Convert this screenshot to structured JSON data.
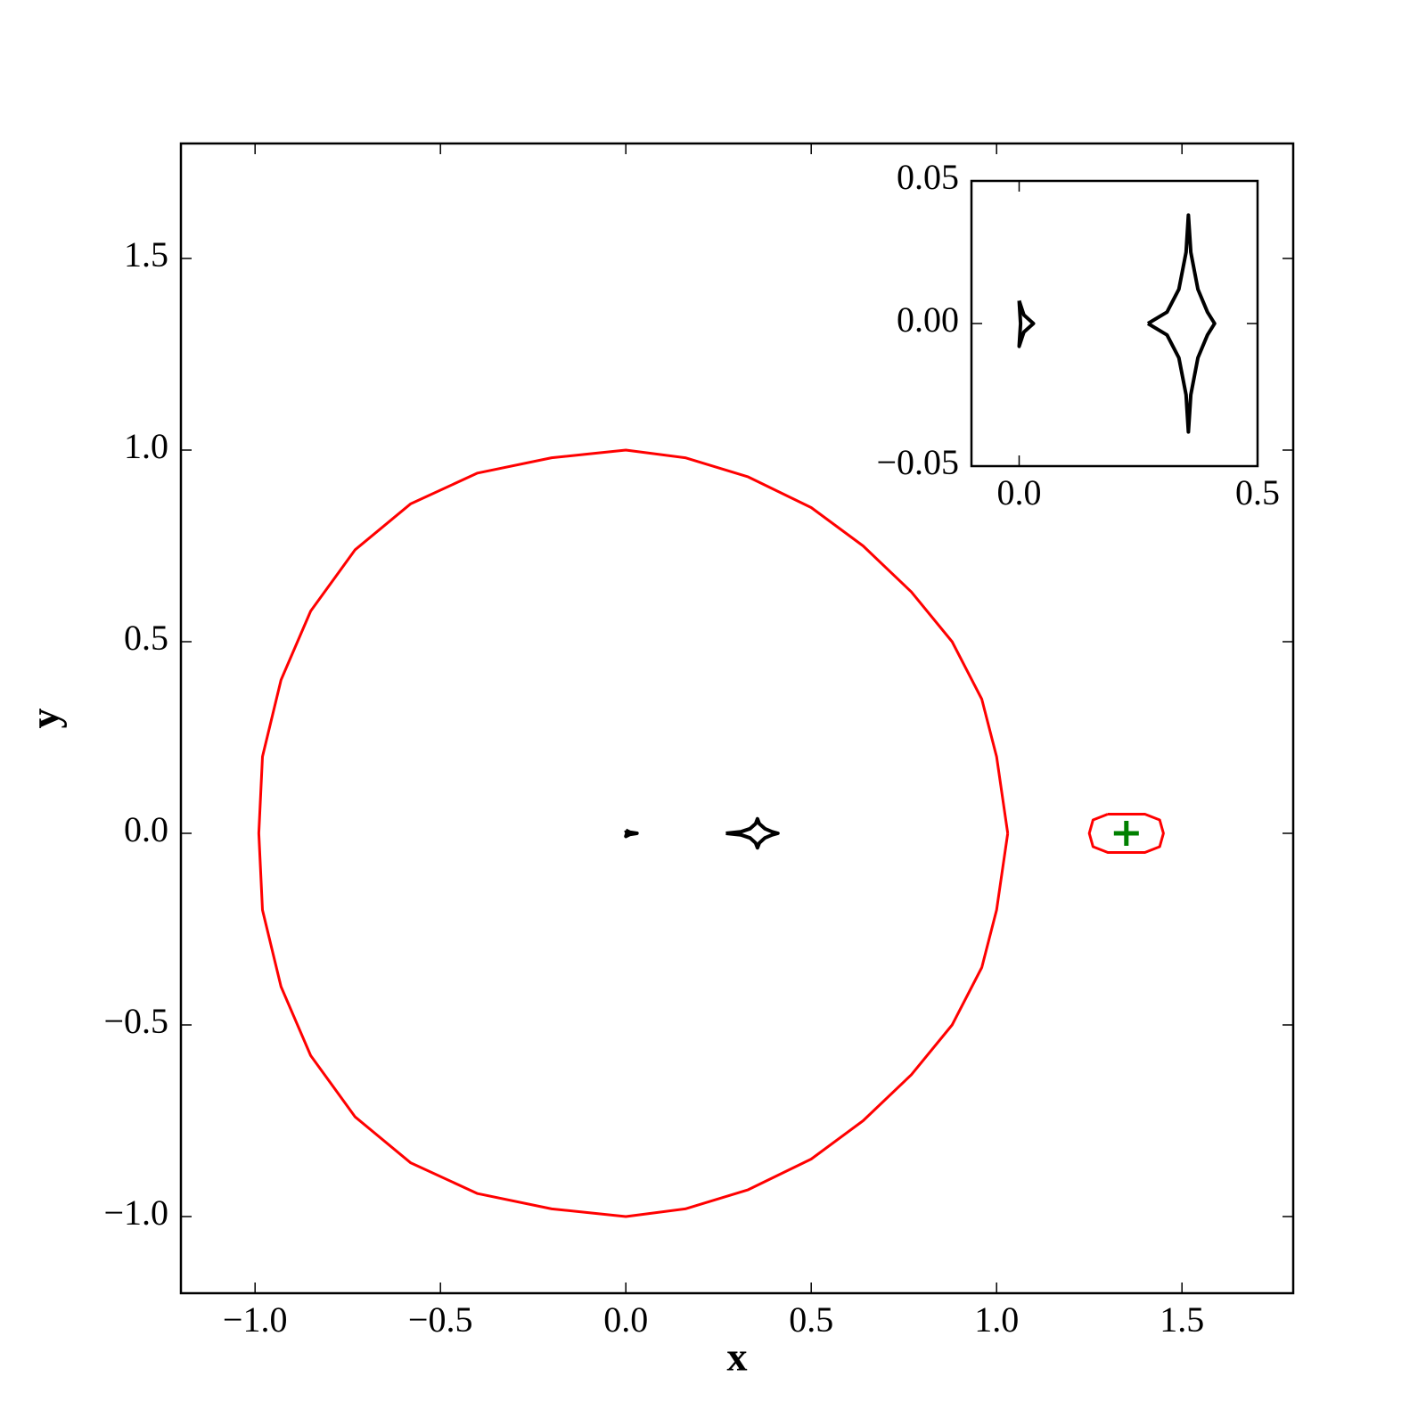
{
  "chart_data": [
    {
      "type": "line",
      "xlabel": "x",
      "ylabel": "y",
      "xlim": [
        -1.2,
        1.8
      ],
      "ylim": [
        -1.2,
        1.8
      ],
      "xticks": [
        {
          "value": -1,
          "label": "−1.0"
        },
        {
          "value": -0.5,
          "label": "−0.5"
        },
        {
          "value": 0,
          "label": "0.0"
        },
        {
          "value": 0.5,
          "label": "0.5"
        },
        {
          "value": 1,
          "label": "1.0"
        },
        {
          "value": 1.5,
          "label": "1.5"
        }
      ],
      "yticks": [
        {
          "value": -1,
          "label": "−1.0"
        },
        {
          "value": -0.5,
          "label": "−0.5"
        },
        {
          "value": 0,
          "label": "0.0"
        },
        {
          "value": 0.5,
          "label": "0.5"
        },
        {
          "value": 1,
          "label": "1.0"
        },
        {
          "value": 1.5,
          "label": "1.5"
        }
      ],
      "series": [
        {
          "color": "#ff0000",
          "x": [
            1.03,
            1.0,
            0.96,
            0.88,
            0.77,
            0.64,
            0.5,
            0.33,
            0.16,
            0,
            -0.2,
            -0.4,
            -0.58,
            -0.73,
            -0.85,
            -0.93,
            -0.98,
            -0.99,
            -0.98,
            -0.93,
            -0.85,
            -0.73,
            -0.58,
            -0.4,
            -0.2,
            0,
            0.16,
            0.33,
            0.5,
            0.64,
            0.77,
            0.88,
            0.96,
            1.0,
            1.03
          ],
          "values": [
            0,
            0.2,
            0.35,
            0.5,
            0.63,
            0.75,
            0.85,
            0.93,
            0.98,
            1.0,
            0.98,
            0.94,
            0.86,
            0.74,
            0.58,
            0.4,
            0.2,
            0,
            -0.2,
            -0.4,
            -0.58,
            -0.74,
            -0.86,
            -0.94,
            -0.98,
            -1.0,
            -0.98,
            -0.93,
            -0.85,
            -0.75,
            -0.63,
            -0.5,
            -0.35,
            -0.2,
            0
          ]
        },
        {
          "color": "#ff0000",
          "x": [
            1.3,
            1.4,
            1.44,
            1.45,
            1.44,
            1.4,
            1.3,
            1.26,
            1.25,
            1.26,
            1.3
          ],
          "values": [
            0.05,
            0.05,
            0.035,
            0,
            -0.035,
            -0.05,
            -0.05,
            -0.035,
            0,
            0.035,
            0.05
          ]
        },
        {
          "color": "#000000",
          "x": [
            0.27,
            0.31,
            0.335,
            0.35,
            0.355,
            0.36,
            0.375,
            0.395,
            0.41,
            0.395,
            0.375,
            0.36,
            0.355,
            0.35,
            0.335,
            0.31,
            0.27
          ],
          "values": [
            0,
            0.004,
            0.012,
            0.025,
            0.038,
            0.025,
            0.012,
            0.004,
            0,
            -0.004,
            -0.012,
            -0.025,
            -0.038,
            -0.025,
            -0.012,
            -0.004,
            0
          ]
        },
        {
          "color": "#000000",
          "x": [
            0.0,
            0.01,
            0.03,
            0.01,
            0.0,
            0.003,
            0.0
          ],
          "values": [
            0.008,
            0.003,
            0,
            -0.003,
            -0.008,
            0,
            0.008
          ]
        },
        {
          "color": "#008000",
          "marker": "+",
          "x": [
            1.35
          ],
          "values": [
            0
          ]
        }
      ]
    },
    {
      "type": "line",
      "xlim": [
        -0.1,
        0.5
      ],
      "ylim": [
        -0.05,
        0.05
      ],
      "xticks": [
        {
          "value": 0,
          "label": "0.0"
        },
        {
          "value": 0.5,
          "label": "0.5"
        }
      ],
      "yticks": [
        {
          "value": -0.05,
          "label": "−0.05"
        },
        {
          "value": 0,
          "label": "0.00"
        },
        {
          "value": 0.05,
          "label": "0.05"
        }
      ],
      "series": [
        {
          "color": "#000000",
          "x": [
            0.27,
            0.31,
            0.335,
            0.35,
            0.355,
            0.36,
            0.375,
            0.395,
            0.41,
            0.395,
            0.375,
            0.36,
            0.355,
            0.35,
            0.335,
            0.31,
            0.27
          ],
          "values": [
            0,
            0.004,
            0.012,
            0.025,
            0.038,
            0.025,
            0.012,
            0.004,
            0,
            -0.004,
            -0.012,
            -0.025,
            -0.038,
            -0.025,
            -0.012,
            -0.004,
            0
          ]
        },
        {
          "color": "#000000",
          "x": [
            0.0,
            0.01,
            0.03,
            0.01,
            0.0,
            0.003,
            0.0
          ],
          "values": [
            0.008,
            0.003,
            0,
            -0.003,
            -0.008,
            0,
            0.008
          ]
        }
      ]
    }
  ]
}
